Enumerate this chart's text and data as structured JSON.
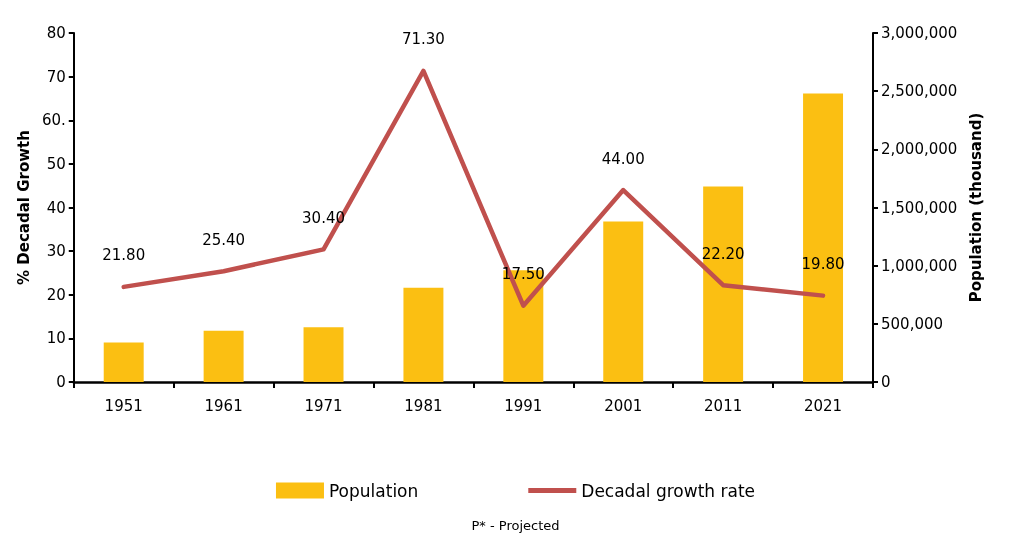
{
  "chart_data": {
    "type": "bar",
    "categories": [
      "1951",
      "1961",
      "1971",
      "1981",
      "1991",
      "2001",
      "2011",
      "2021"
    ],
    "ylabel": "% Decadal Growth",
    "y2label": "Population (thousand)",
    "series": [
      {
        "name": "Population",
        "axis": "y2",
        "color": "#fbbf12",
        "values": [
          340000,
          440000,
          470000,
          810000,
          960000,
          1380000,
          1680000,
          2480000
        ]
      },
      {
        "name": "Decadal growth rate",
        "type": "line",
        "axis": "y",
        "color": "#c0504d",
        "values": [
          21.8,
          25.4,
          30.4,
          71.3,
          17.5,
          44.0,
          22.2,
          19.8
        ],
        "value_labels": [
          "21.80",
          "25.40",
          "30.40",
          "71.30",
          "17.50",
          "44.00",
          "22.20",
          "19.80"
        ]
      }
    ],
    "ylim": [
      0,
      80
    ],
    "yticks": [
      0,
      10,
      20,
      30,
      40,
      50,
      {
        "value": 60,
        "label": "60."
      },
      70,
      80
    ],
    "y2lim": [
      0,
      3000000
    ],
    "y2ticks": [
      {
        "value": 0,
        "label": "0"
      },
      {
        "value": 500000,
        "label": "500,000"
      },
      {
        "value": 1000000,
        "label": "1,000,000"
      },
      {
        "value": 1500000,
        "label": "1,500,000"
      },
      {
        "value": 2000000,
        "label": "2,000,000"
      },
      {
        "value": 2500000,
        "label": "2,500,000"
      },
      {
        "value": 3000000,
        "label": "3,000,000"
      }
    ],
    "grid": false,
    "legend": "bottom",
    "marker": "none",
    "line_style": "solid",
    "annotations": [
      "P* - Projected"
    ]
  }
}
